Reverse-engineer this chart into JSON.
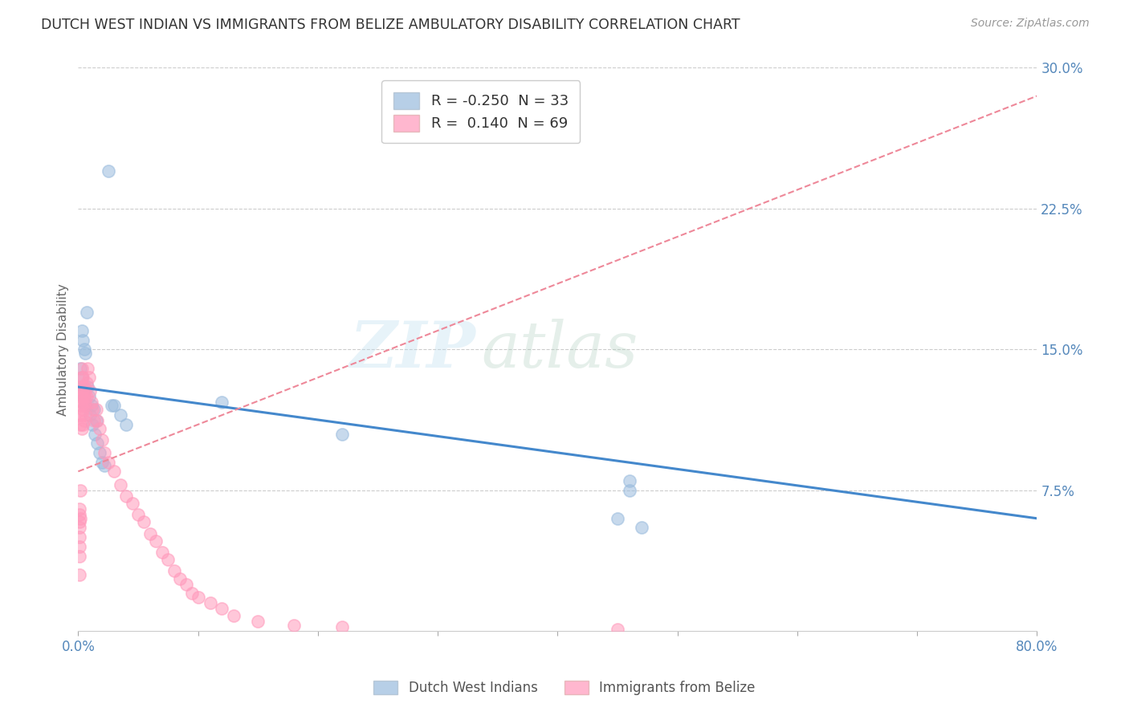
{
  "title": "DUTCH WEST INDIAN VS IMMIGRANTS FROM BELIZE AMBULATORY DISABILITY CORRELATION CHART",
  "source": "Source: ZipAtlas.com",
  "ylabel": "Ambulatory Disability",
  "xlim": [
    0.0,
    0.8
  ],
  "ylim": [
    0.0,
    0.3
  ],
  "yticks": [
    0.075,
    0.15,
    0.225,
    0.3
  ],
  "ytick_labels": [
    "7.5%",
    "15.0%",
    "22.5%",
    "30.0%"
  ],
  "xticks": [
    0.0,
    0.1,
    0.2,
    0.3,
    0.4,
    0.5,
    0.6,
    0.7,
    0.8
  ],
  "xtick_labels": [
    "0.0%",
    "",
    "",
    "",
    "",
    "",
    "",
    "",
    "80.0%"
  ],
  "legend1_r": "-0.250",
  "legend1_n": "33",
  "legend2_r": "0.140",
  "legend2_n": "69",
  "color_blue": "#99BBDD",
  "color_pink": "#FF99BB",
  "color_blue_line": "#4488CC",
  "color_pink_line": "#EE8899",
  "background_color": "#FFFFFF",
  "watermark_zip": "ZIP",
  "watermark_atlas": "atlas",
  "dutch_west_indians_x": [
    0.002,
    0.003,
    0.003,
    0.004,
    0.004,
    0.005,
    0.005,
    0.006,
    0.006,
    0.007,
    0.008,
    0.009,
    0.01,
    0.011,
    0.012,
    0.013,
    0.014,
    0.015,
    0.016,
    0.018,
    0.02,
    0.022,
    0.025,
    0.028,
    0.03,
    0.035,
    0.04,
    0.12,
    0.22,
    0.46,
    0.46,
    0.47,
    0.45
  ],
  "dutch_west_indians_y": [
    0.14,
    0.135,
    0.16,
    0.13,
    0.155,
    0.125,
    0.15,
    0.12,
    0.148,
    0.17,
    0.13,
    0.125,
    0.115,
    0.12,
    0.11,
    0.118,
    0.105,
    0.112,
    0.1,
    0.095,
    0.09,
    0.088,
    0.245,
    0.12,
    0.12,
    0.115,
    0.11,
    0.122,
    0.105,
    0.075,
    0.08,
    0.055,
    0.06
  ],
  "immigrants_belize_x": [
    0.001,
    0.001,
    0.001,
    0.001,
    0.001,
    0.001,
    0.001,
    0.001,
    0.002,
    0.002,
    0.002,
    0.002,
    0.002,
    0.002,
    0.002,
    0.003,
    0.003,
    0.003,
    0.003,
    0.003,
    0.003,
    0.004,
    0.004,
    0.004,
    0.004,
    0.004,
    0.005,
    0.005,
    0.005,
    0.005,
    0.006,
    0.006,
    0.006,
    0.007,
    0.007,
    0.008,
    0.009,
    0.01,
    0.011,
    0.012,
    0.013,
    0.015,
    0.016,
    0.018,
    0.02,
    0.022,
    0.025,
    0.03,
    0.035,
    0.04,
    0.045,
    0.05,
    0.055,
    0.06,
    0.065,
    0.07,
    0.075,
    0.08,
    0.085,
    0.09,
    0.095,
    0.1,
    0.11,
    0.12,
    0.13,
    0.15,
    0.18,
    0.22,
    0.45
  ],
  "immigrants_belize_y": [
    0.065,
    0.062,
    0.058,
    0.055,
    0.05,
    0.045,
    0.04,
    0.03,
    0.13,
    0.125,
    0.12,
    0.115,
    0.11,
    0.075,
    0.06,
    0.14,
    0.135,
    0.128,
    0.122,
    0.115,
    0.108,
    0.135,
    0.13,
    0.125,
    0.118,
    0.11,
    0.13,
    0.125,
    0.12,
    0.112,
    0.128,
    0.122,
    0.115,
    0.132,
    0.125,
    0.14,
    0.135,
    0.128,
    0.122,
    0.118,
    0.112,
    0.118,
    0.112,
    0.108,
    0.102,
    0.095,
    0.09,
    0.085,
    0.078,
    0.072,
    0.068,
    0.062,
    0.058,
    0.052,
    0.048,
    0.042,
    0.038,
    0.032,
    0.028,
    0.025,
    0.02,
    0.018,
    0.015,
    0.012,
    0.008,
    0.005,
    0.003,
    0.002,
    0.001
  ],
  "blue_line_x": [
    0.0,
    0.8
  ],
  "blue_line_y": [
    0.13,
    0.06
  ],
  "pink_line_x": [
    0.0,
    0.8
  ],
  "pink_line_y": [
    0.085,
    0.285
  ]
}
